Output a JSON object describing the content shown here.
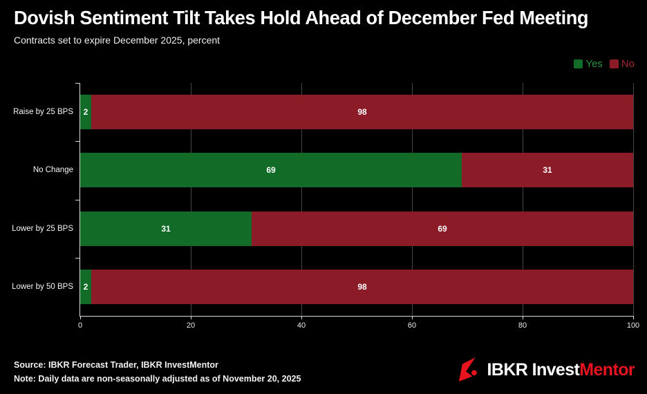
{
  "header": {
    "title": "Dovish Sentiment Tilt Takes Hold Ahead of December Fed Meeting",
    "subtitle": "Contracts set to expire December 2025, percent"
  },
  "chart_data": {
    "type": "bar",
    "orientation": "horizontal",
    "stacked": true,
    "categories": [
      "Raise by 25 BPS",
      "No Change",
      "Lower by 25 BPS",
      "Lower by 50 BPS"
    ],
    "series": [
      {
        "name": "Yes",
        "color": "#126b27",
        "label_color": "#2a9240",
        "values": [
          2,
          69,
          31,
          2
        ]
      },
      {
        "name": "No",
        "color": "#8b1b26",
        "label_color": "#a42532",
        "values": [
          98,
          31,
          69,
          98
        ]
      }
    ],
    "xlim": [
      0,
      100
    ],
    "x_ticks": [
      0,
      20,
      40,
      60,
      80,
      100
    ],
    "grid": "vertical",
    "legend_position": "top-right",
    "value_label_color": "#ffffff",
    "background_color": "#000000"
  },
  "footer": {
    "source": "Source: IBKR Forecast Trader, IBKR InvestMentor",
    "note": "Note: Daily data are non-seasonally adjusted as of November 20, 2025",
    "logo": {
      "brand_white": "IBKR Invest",
      "brand_red": "Mentor",
      "red": "#e8131f"
    }
  }
}
